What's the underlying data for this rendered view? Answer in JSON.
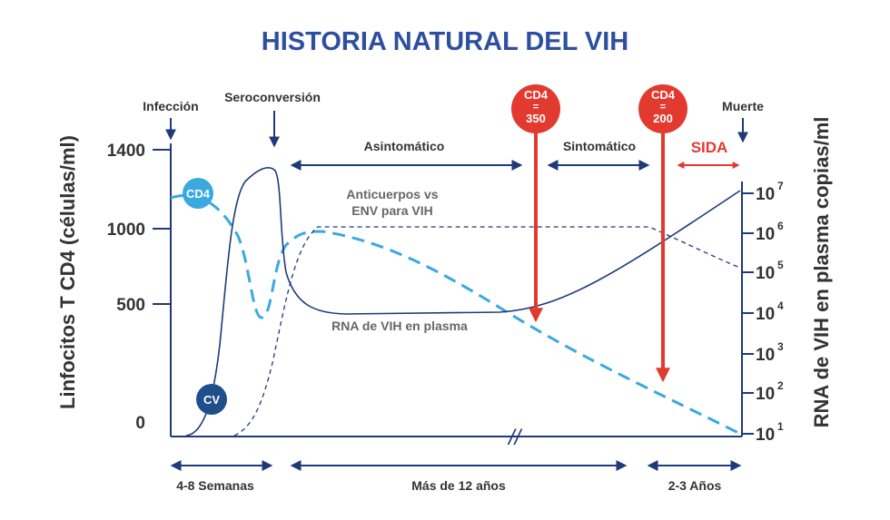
{
  "header": {
    "title": "HISTORIA NATURAL DEL VIH"
  },
  "left_axis": {
    "label": "Linfocitos T CD4 (células/ml)",
    "ticks": [
      "1400",
      "1000",
      "500",
      "0"
    ]
  },
  "right_axis": {
    "label": "RNA de VIH en plasma copias/ml",
    "ticks": [
      {
        "base": "10",
        "exponent": "7"
      },
      {
        "base": "10",
        "exponent": "6"
      },
      {
        "base": "10",
        "exponent": "5"
      },
      {
        "base": "10",
        "exponent": "4"
      },
      {
        "base": "10",
        "exponent": "3"
      },
      {
        "base": "10",
        "exponent": "2"
      },
      {
        "base": "10",
        "exponent": "1"
      }
    ]
  },
  "events": {
    "infection": "Infección",
    "seroconversion": "Seroconversión",
    "death": "Muerte",
    "cd4_350": [
      "CD4",
      "=",
      "350"
    ],
    "cd4_200": [
      "CD4",
      "=",
      "200"
    ]
  },
  "phases": {
    "asymptomatic": "Asintomático",
    "symptomatic": "Sintomático",
    "aids": "SIDA"
  },
  "curves": {
    "cd4": "CD4",
    "viral_load": "CV",
    "antibodies": [
      "Anticuerpos vs",
      "ENV para VIH"
    ],
    "rna": "RNA de VIH en plasma"
  },
  "periods": [
    "4-8 Semanas",
    "Más de 12 años",
    "2-3 Años"
  ]
}
